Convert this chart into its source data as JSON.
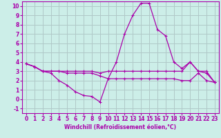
{
  "xlabel": "Windchill (Refroidissement éolien,°C)",
  "xlim": [
    -0.5,
    23.5
  ],
  "ylim": [
    -1.5,
    10.5
  ],
  "xticks": [
    0,
    1,
    2,
    3,
    4,
    5,
    6,
    7,
    8,
    9,
    10,
    11,
    12,
    13,
    14,
    15,
    16,
    17,
    18,
    19,
    20,
    21,
    22,
    23
  ],
  "yticks": [
    -1,
    0,
    1,
    2,
    3,
    4,
    5,
    6,
    7,
    8,
    9,
    10
  ],
  "background_color": "#cceee8",
  "grid_color": "#b0c8c8",
  "line_color": "#aa00aa",
  "line1_x": [
    0,
    1,
    2,
    3,
    4,
    5,
    6,
    7,
    8,
    9,
    10,
    11,
    12,
    13,
    14,
    15,
    16,
    17,
    18,
    19,
    20,
    21,
    22,
    23
  ],
  "line1_y": [
    3.8,
    3.5,
    3.0,
    2.8,
    2.0,
    1.5,
    0.8,
    0.4,
    0.3,
    -0.3,
    2.2,
    4.0,
    7.0,
    9.0,
    10.3,
    10.3,
    7.5,
    6.8,
    4.0,
    3.3,
    4.0,
    3.0,
    2.8,
    1.8
  ],
  "line2_x": [
    0,
    1,
    2,
    3,
    4,
    5,
    6,
    7,
    8,
    9,
    10,
    11,
    12,
    13,
    14,
    15,
    16,
    17,
    18,
    19,
    20,
    21,
    22,
    23
  ],
  "line2_y": [
    3.8,
    3.5,
    3.0,
    3.0,
    3.0,
    3.0,
    3.0,
    3.0,
    3.0,
    2.8,
    3.0,
    3.0,
    3.0,
    3.0,
    3.0,
    3.0,
    3.0,
    3.0,
    3.0,
    3.0,
    4.0,
    3.0,
    3.0,
    1.8
  ],
  "line3_x": [
    0,
    1,
    2,
    3,
    4,
    5,
    6,
    7,
    8,
    9,
    10,
    11,
    12,
    13,
    14,
    15,
    16,
    17,
    18,
    19,
    20,
    21,
    22,
    23
  ],
  "line3_y": [
    3.8,
    3.5,
    3.0,
    3.0,
    3.0,
    2.8,
    2.8,
    2.8,
    2.8,
    2.5,
    2.2,
    2.2,
    2.2,
    2.2,
    2.2,
    2.2,
    2.2,
    2.2,
    2.2,
    2.0,
    2.0,
    2.8,
    2.0,
    1.8
  ]
}
